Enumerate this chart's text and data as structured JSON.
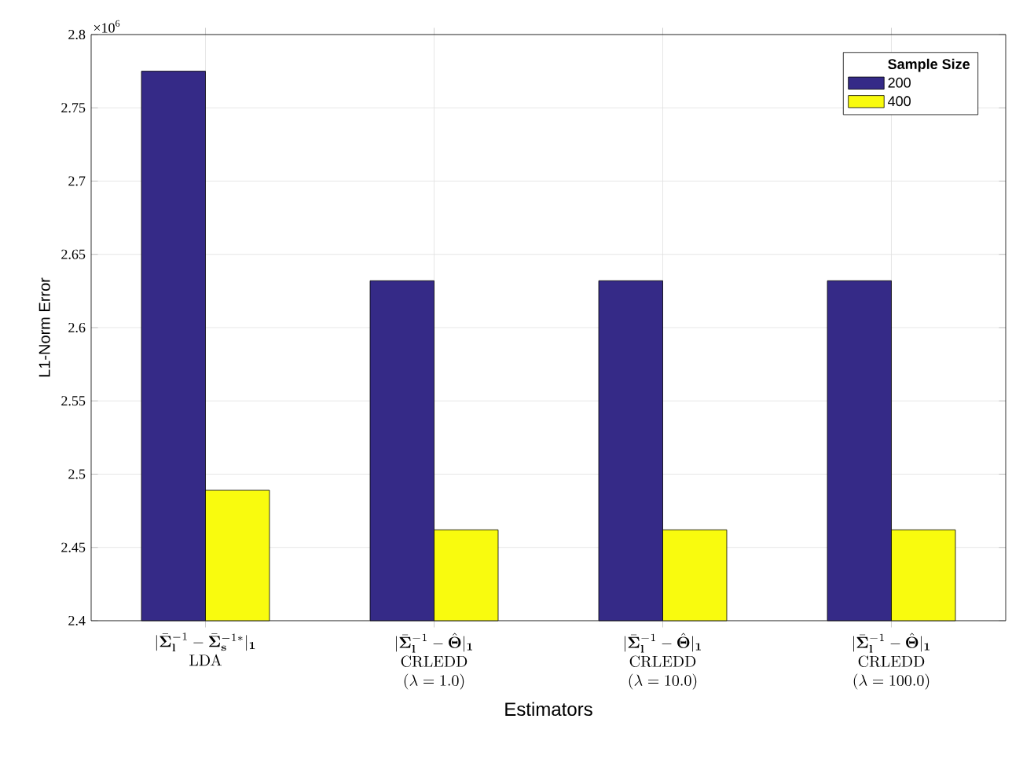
{
  "chart_data": {
    "type": "bar",
    "xlabel": "Estimators",
    "ylabel": "L1-Norm Error",
    "legend_title": "Sample Size",
    "categories": [
      "\\begin{array}{c}|\\bar{\\mathbf{\\Sigma}}_{\\mathbf{l}}^{-1}-\\bar{\\mathbf{\\Sigma}}_{\\mathbf{s}}^{-1*}|_{\\mathbf{1}}\\\\ \\mathrm{LDA}\\end{array}",
      "\\begin{array}{c}|\\bar{\\mathbf{\\Sigma}}_{\\mathbf{l}}^{-1}-\\hat{\\mathbf{\\Theta}}|_{\\mathbf{1}}\\\\ \\mathrm{CRLEDD}\\\\ (\\lambda=1.0)\\end{array}",
      "\\begin{array}{c}|\\bar{\\mathbf{\\Sigma}}_{\\mathbf{l}}^{-1}-\\hat{\\mathbf{\\Theta}}|_{\\mathbf{1}}\\\\ \\mathrm{CRLEDD}\\\\ (\\lambda=10.0)\\end{array}",
      "\\begin{array}{c}|\\bar{\\mathbf{\\Sigma}}_{\\mathbf{l}}^{-1}-\\hat{\\mathbf{\\Theta}}|_{\\mathbf{1}}\\\\ \\mathrm{CRLEDD}\\\\ (\\lambda=100.0)\\end{array}"
    ],
    "series": [
      {
        "name": "200",
        "color": "#352a87",
        "values": [
          2.775,
          2.632,
          2.632,
          2.632
        ]
      },
      {
        "name": "400",
        "color": "#f9fb0e",
        "values": [
          2.489,
          2.462,
          2.462,
          2.462
        ]
      }
    ],
    "ylim": [
      2.4,
      2.8
    ],
    "yticks": [
      2.4,
      2.45,
      2.5,
      2.55,
      2.6,
      2.65,
      2.7,
      2.75,
      2.8
    ],
    "annotations": [
      "×10$^{6}$"
    ],
    "grid": true,
    "legend": "top right"
  }
}
